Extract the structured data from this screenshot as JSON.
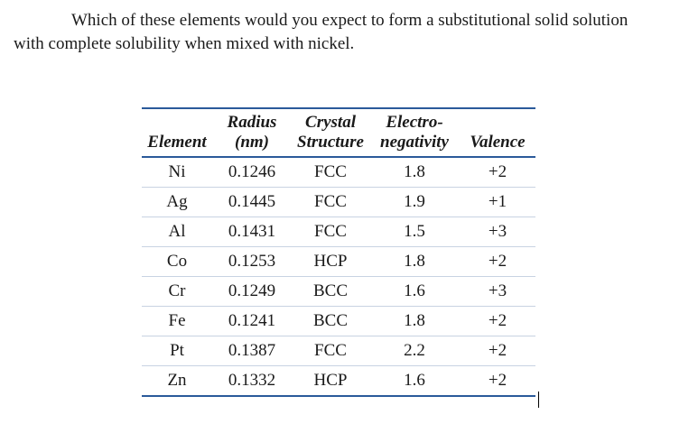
{
  "question": {
    "line1": "Which of these elements would you expect to form a substitutional solid solution",
    "line2": "with complete solubility when mixed with nickel."
  },
  "table": {
    "header_row1": [
      "",
      "Radius",
      "Crystal",
      "Electro-",
      ""
    ],
    "header_row2": [
      "Element",
      "(nm)",
      "Structure",
      "negativity",
      "Valence"
    ],
    "rows": [
      [
        "Ni",
        "0.1246",
        "FCC",
        "1.8",
        "+2"
      ],
      [
        "Ag",
        "0.1445",
        "FCC",
        "1.9",
        "+1"
      ],
      [
        "Al",
        "0.1431",
        "FCC",
        "1.5",
        "+3"
      ],
      [
        "Co",
        "0.1253",
        "HCP",
        "1.8",
        "+2"
      ],
      [
        "Cr",
        "0.1249",
        "BCC",
        "1.6",
        "+3"
      ],
      [
        "Fe",
        "0.1241",
        "BCC",
        "1.8",
        "+2"
      ],
      [
        "Pt",
        "0.1387",
        "FCC",
        "2.2",
        "+2"
      ],
      [
        "Zn",
        "0.1332",
        "HCP",
        "1.6",
        "+2"
      ]
    ]
  }
}
